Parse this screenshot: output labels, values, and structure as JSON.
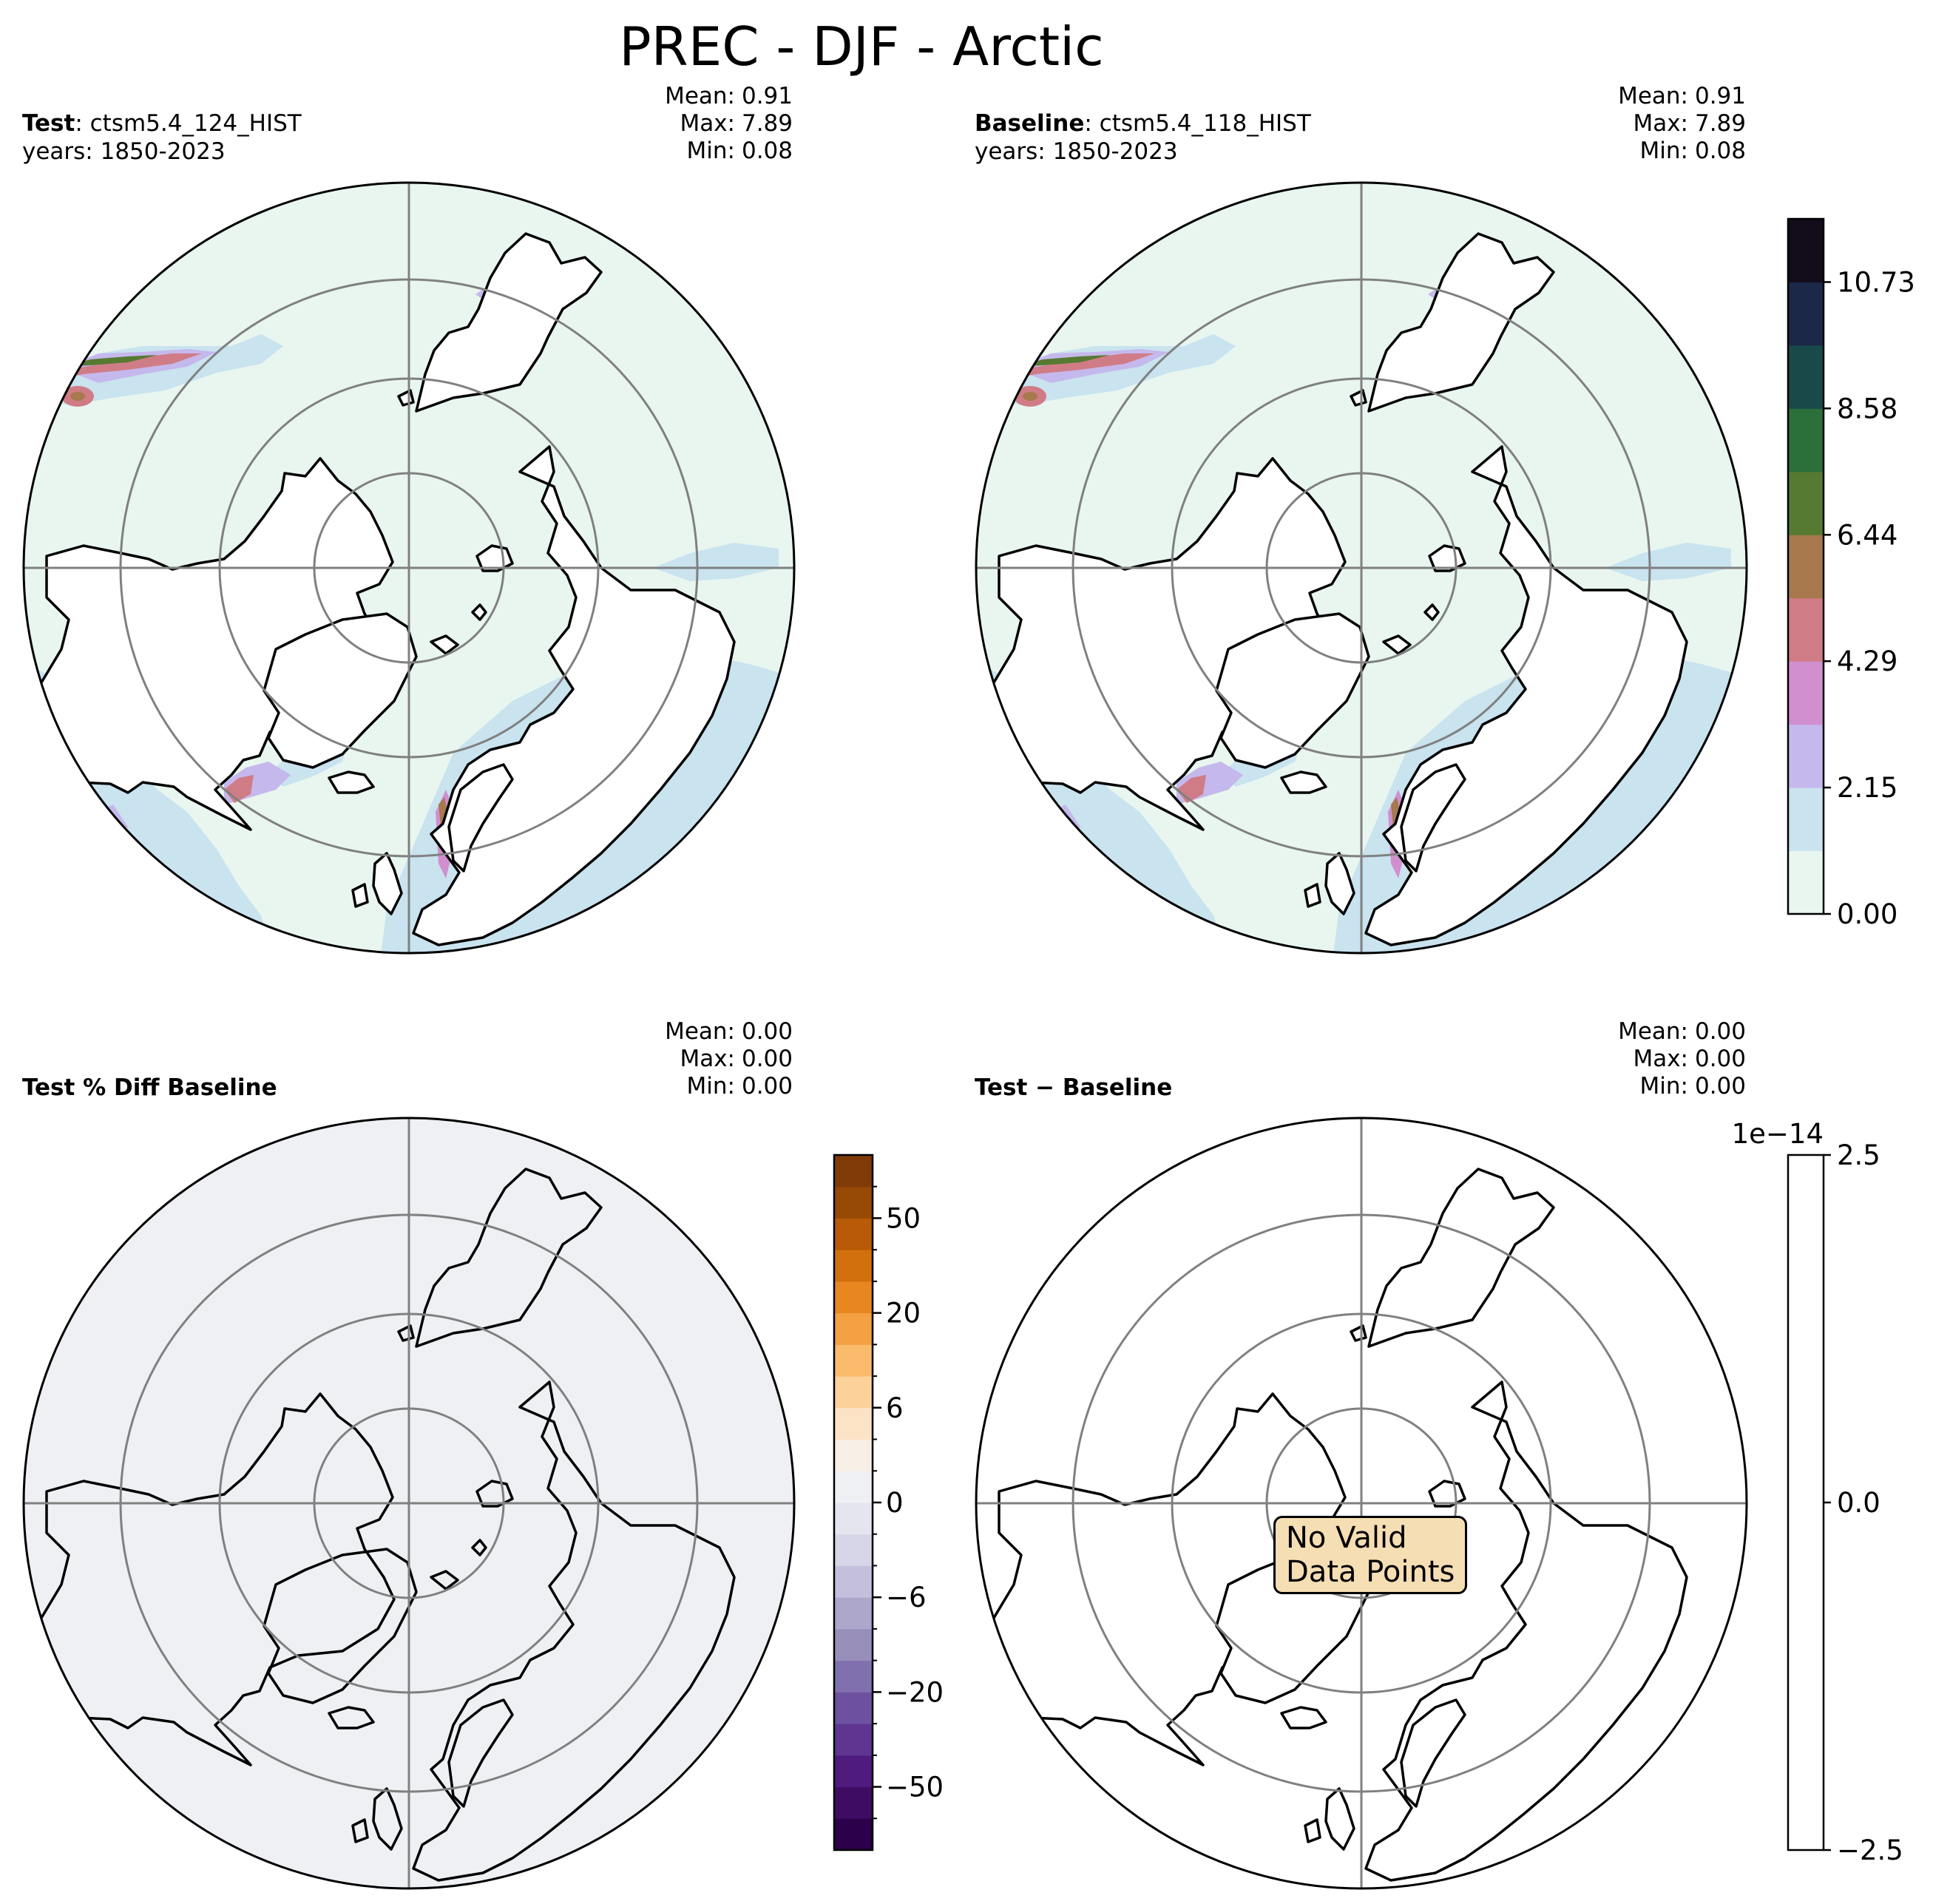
{
  "title": "PREC - DJF - Arctic",
  "panels": {
    "test": {
      "label_bold": "Test",
      "label_rest": ": ctsm5.4_124_HIST",
      "years": "years: 1850-2023",
      "stats": [
        {
          "k": "Mean:",
          "v": "0.91"
        },
        {
          "k": "Max:",
          "v": "7.89"
        },
        {
          "k": "Min:",
          "v": "0.08"
        }
      ]
    },
    "baseline": {
      "label_bold": "Baseline",
      "label_rest": ": ctsm5.4_118_HIST",
      "years": "years: 1850-2023",
      "stats": [
        {
          "k": "Mean:",
          "v": "0.91"
        },
        {
          "k": "Max:",
          "v": "7.89"
        },
        {
          "k": "Min:",
          "v": "0.08"
        }
      ]
    },
    "pctdiff": {
      "label_bold": "Test % Diff Baseline",
      "stats": [
        {
          "k": "Mean:",
          "v": "0.00"
        },
        {
          "k": "Max:",
          "v": "0.00"
        },
        {
          "k": "Min:",
          "v": "0.00"
        }
      ]
    },
    "diff": {
      "label_bold": "Test − Baseline",
      "stats": [
        {
          "k": "Mean:",
          "v": "0.00"
        },
        {
          "k": "Max:",
          "v": "0.00"
        },
        {
          "k": "Min:",
          "v": "0.00"
        }
      ],
      "no_data": [
        "No Valid",
        "Data Points"
      ]
    }
  },
  "colorbars": {
    "main": {
      "ticks": [
        "10.73",
        "8.58",
        "6.44",
        "4.29",
        "2.15",
        "0.00"
      ],
      "colors": [
        "#e8f6ef",
        "#c9e3ef",
        "#c5b8ec",
        "#d18fd0",
        "#d07c86",
        "#a7794d",
        "#567a31",
        "#2b6f3b",
        "#184a49",
        "#1b2848",
        "#130c1b"
      ]
    },
    "pct": {
      "ticks": [
        "50",
        "20",
        "6",
        "0",
        "−6",
        "−20",
        "−50"
      ],
      "colors": [
        "#2d004b",
        "#3f0c63",
        "#4f1b7f",
        "#5e3590",
        "#6d51a0",
        "#8070ad",
        "#978eba",
        "#aea7cc",
        "#c4bfdc",
        "#d6d6e8",
        "#e5e5f0",
        "#eff0f4",
        "#f7efe6",
        "#fde3c6",
        "#fdd19a",
        "#fbbb6c",
        "#f4a143",
        "#e8861f",
        "#d3700e",
        "#b85a07",
        "#974906",
        "#7f3b08"
      ]
    },
    "diff": {
      "exponent": "1e−14",
      "ticks": [
        "2.5",
        "0.0",
        "−2.5"
      ]
    }
  },
  "legend_colors": {
    "land_outline": "#000000",
    "graticule": "#808080",
    "pct_fill": "#eef0f4",
    "nodata_box": "#f5deb3"
  }
}
